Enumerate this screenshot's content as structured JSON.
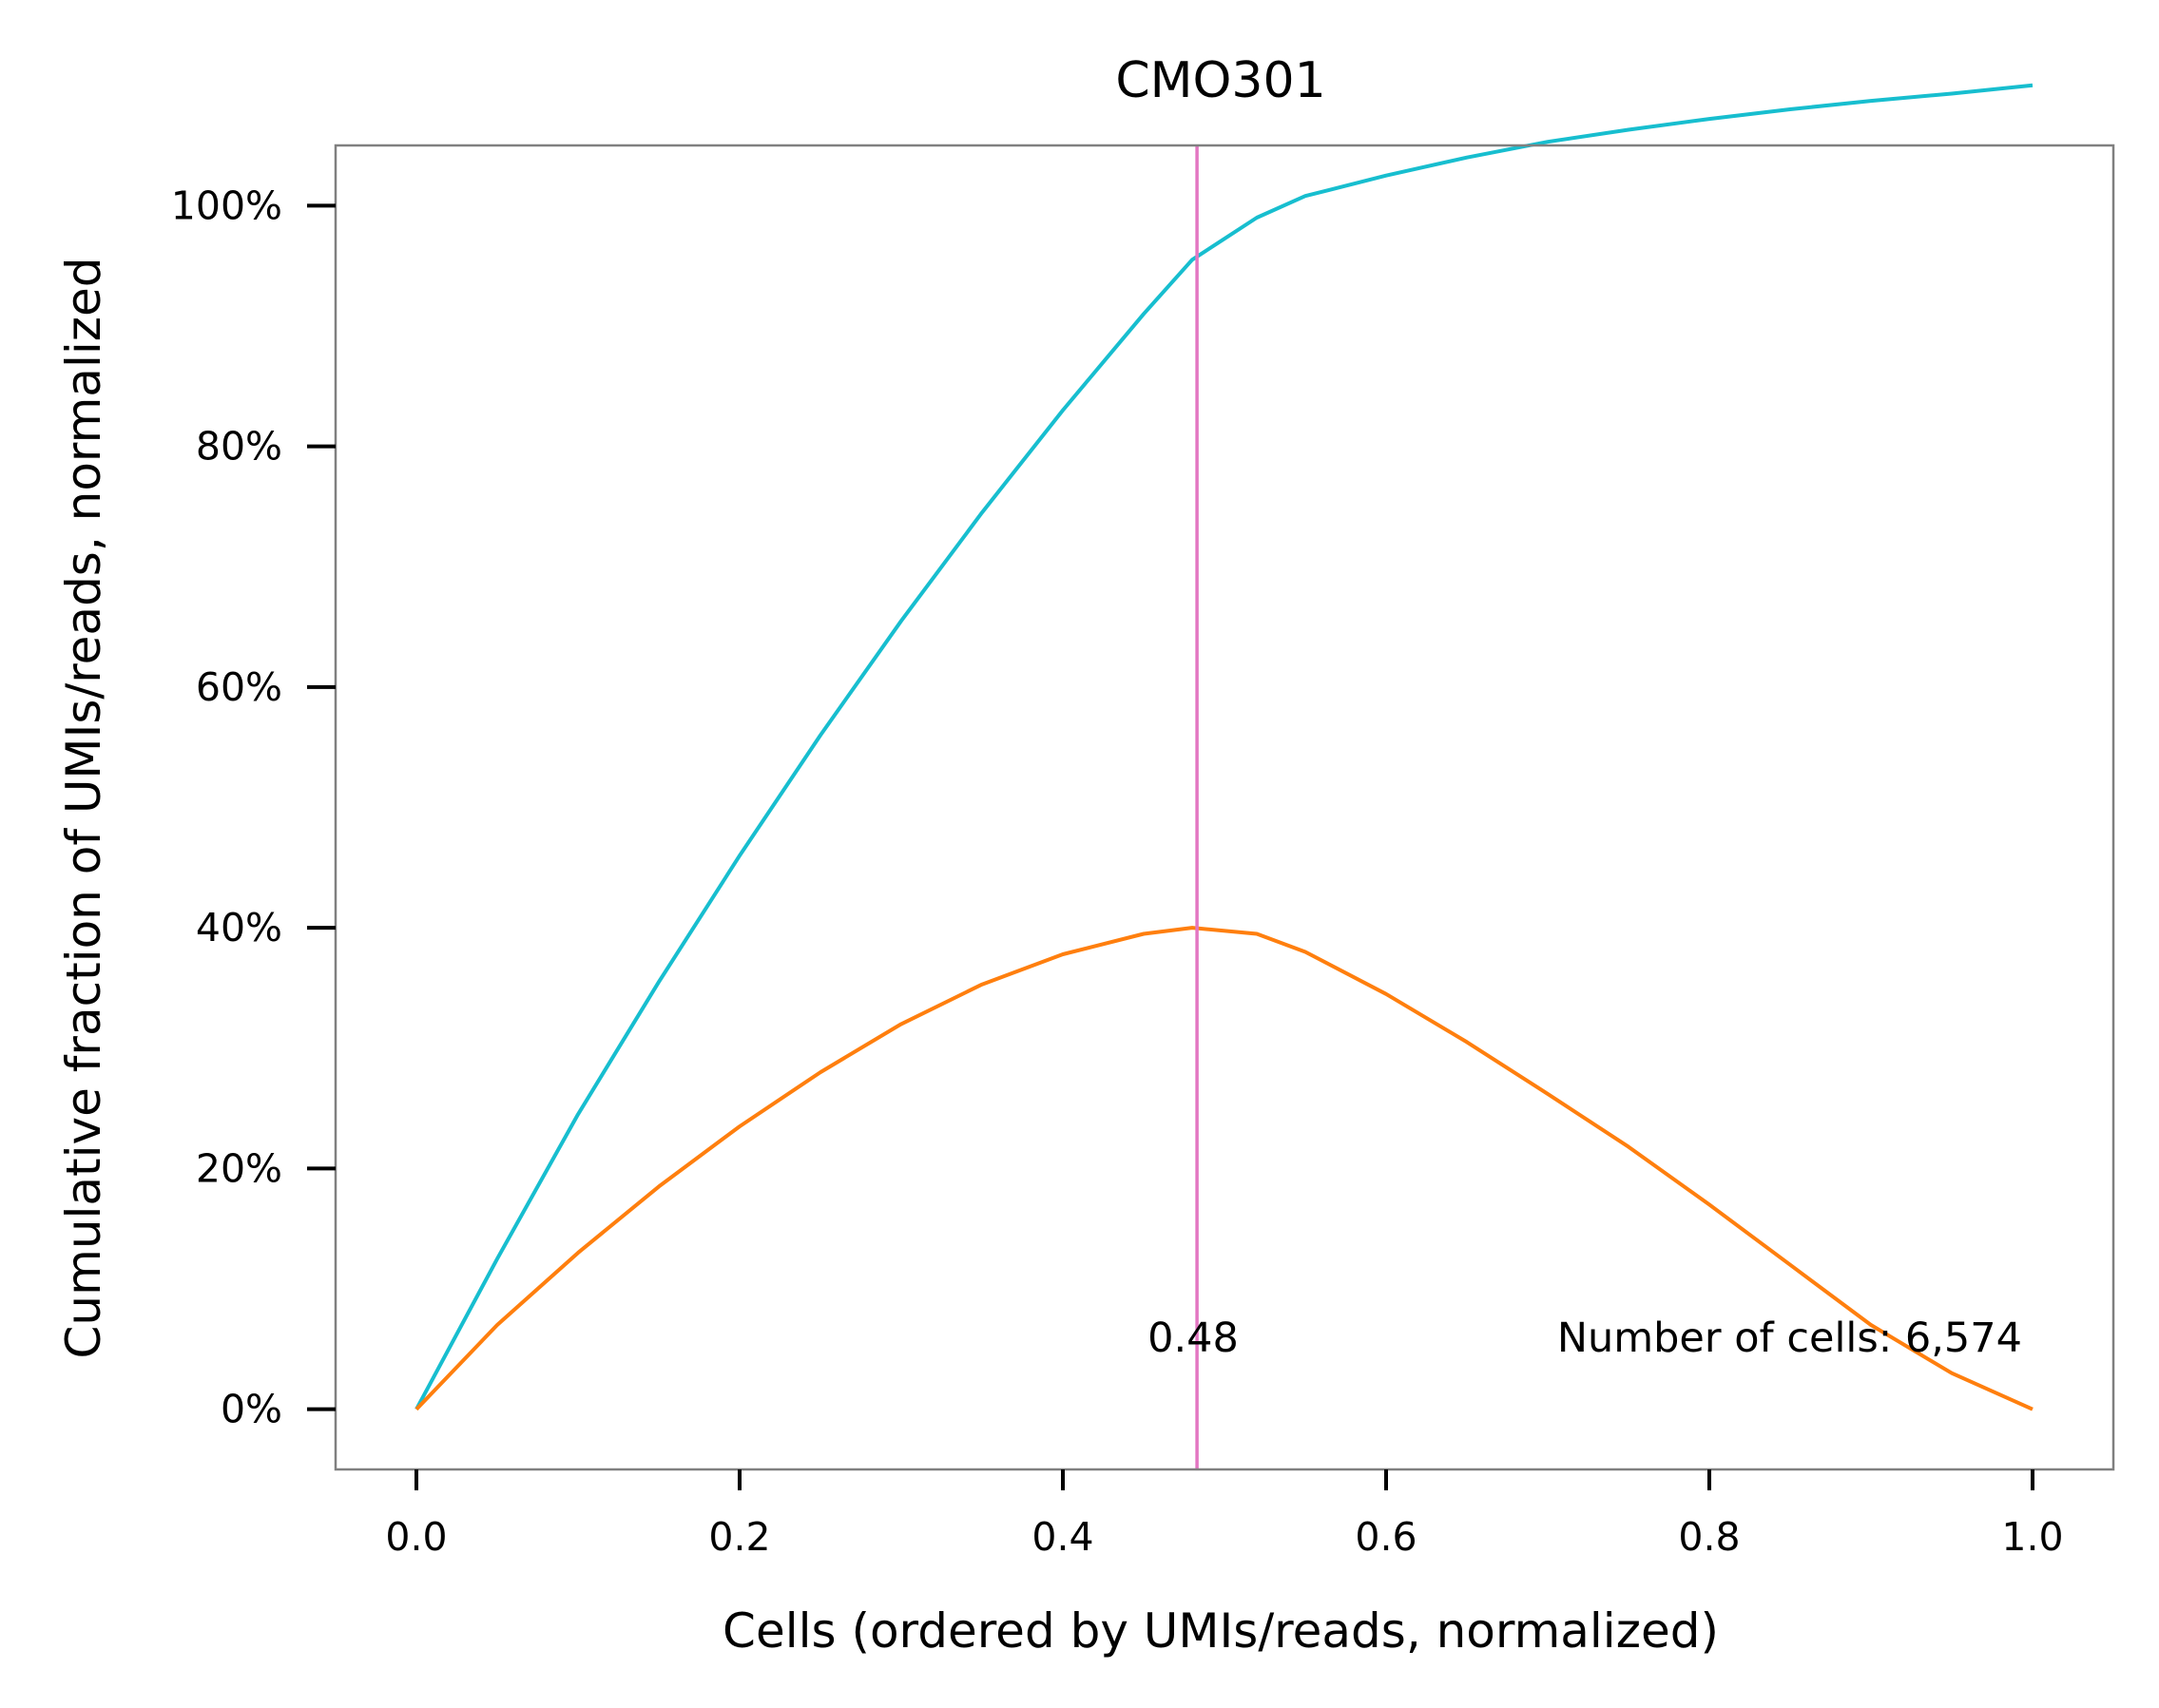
{
  "chart_data": {
    "type": "line",
    "title": "CMO301",
    "xlabel": "Cells (ordered by UMIs/reads, normalized)",
    "ylabel": "Cumulative fraction of UMIs/reads, normalized",
    "xlim": [
      -0.05,
      1.05
    ],
    "ylim": [
      -0.05,
      1.05
    ],
    "x_ticks": [
      0.0,
      0.2,
      0.4,
      0.6,
      0.8,
      1.0
    ],
    "x_tick_labels": [
      "0.0",
      "0.2",
      "0.4",
      "0.6",
      "0.8",
      "1.0"
    ],
    "y_ticks": [
      0.0,
      0.2,
      0.4,
      0.6,
      0.8,
      1.0
    ],
    "y_tick_labels": [
      "0%",
      "20%",
      "40%",
      "60%",
      "80%",
      "100%"
    ],
    "grid": false,
    "series": [
      {
        "color": "#17becf",
        "x": [
          0.0,
          0.05,
          0.1,
          0.15,
          0.2,
          0.25,
          0.3,
          0.35,
          0.4,
          0.45,
          0.48,
          0.52,
          0.55,
          0.6,
          0.65,
          0.7,
          0.75,
          0.8,
          0.85,
          0.9,
          0.95,
          1.0
        ],
        "y": [
          0.0,
          0.125,
          0.245,
          0.355,
          0.46,
          0.56,
          0.655,
          0.745,
          0.83,
          0.91,
          0.955,
          0.99,
          1.008,
          1.025,
          1.04,
          1.053,
          1.063,
          1.072,
          1.08,
          1.087,
          1.093,
          1.1
        ]
      },
      {
        "color": "#ff7f0e",
        "x": [
          0.0,
          0.05,
          0.1,
          0.15,
          0.2,
          0.25,
          0.3,
          0.35,
          0.4,
          0.45,
          0.48,
          0.52,
          0.55,
          0.6,
          0.65,
          0.7,
          0.75,
          0.8,
          0.85,
          0.9,
          0.95,
          1.0
        ],
        "y": [
          0.0,
          0.07,
          0.13,
          0.185,
          0.235,
          0.28,
          0.32,
          0.353,
          0.378,
          0.395,
          0.4,
          0.395,
          0.38,
          0.345,
          0.305,
          0.262,
          0.218,
          0.17,
          0.12,
          0.07,
          0.03,
          0.0
        ]
      }
    ],
    "vline": {
      "x": 0.483,
      "color": "#e377c2",
      "label": "0.48"
    },
    "annotation": "Number of cells: 6,574",
    "frame_color": "#808080"
  }
}
